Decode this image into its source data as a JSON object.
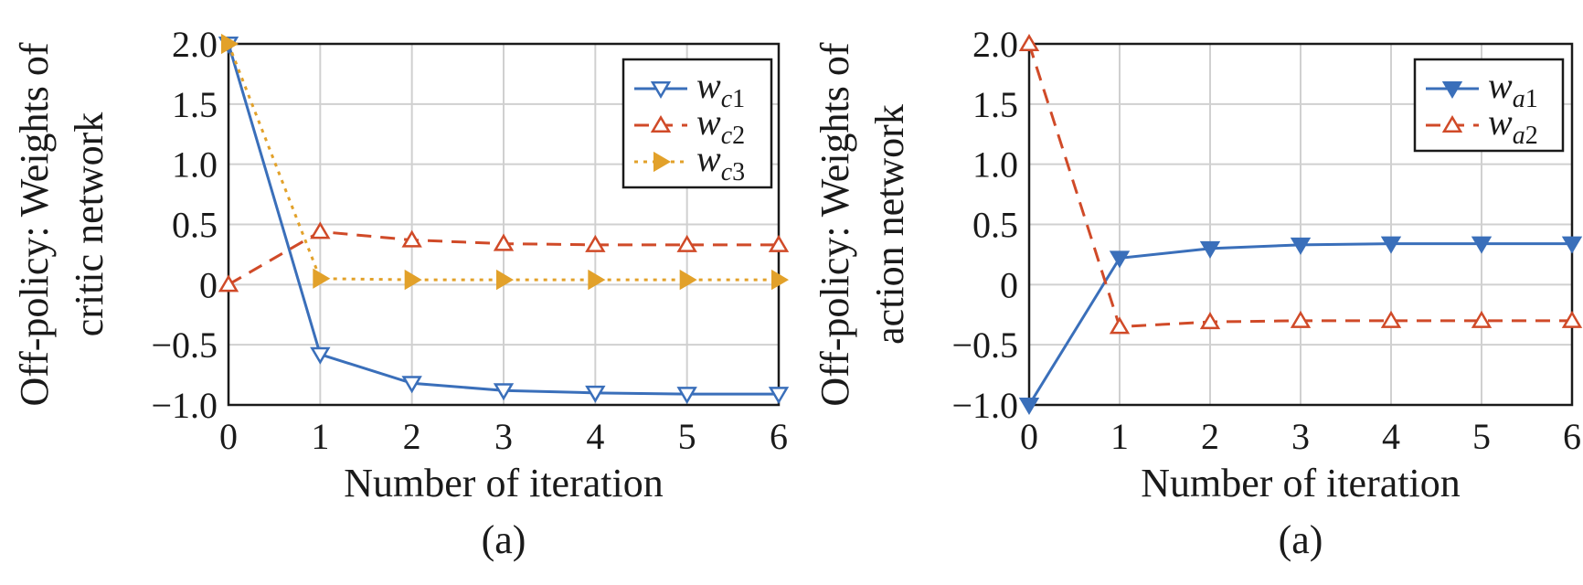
{
  "chart_data": [
    {
      "type": "line",
      "x": [
        0,
        1,
        2,
        3,
        4,
        5,
        6
      ],
      "xlabel": "Number of iteration",
      "ylabel_lines": [
        "Off-policy: Weights of",
        "critic network"
      ],
      "xlim": [
        0,
        6
      ],
      "ylim": [
        -1.0,
        2.0
      ],
      "xticks": [
        "0",
        "1",
        "2",
        "3",
        "4",
        "5",
        "6"
      ],
      "yticks": [
        "−1.0",
        "−0.5",
        "0",
        "0.5",
        "1.0",
        "1.5",
        "2.0"
      ],
      "yticks_values": [
        -1.0,
        -0.5,
        0,
        0.5,
        1.0,
        1.5,
        2.0
      ],
      "grid": true,
      "caption": "(a)",
      "legend_position": "top-right",
      "series": [
        {
          "name": "w",
          "sub_italic": "c",
          "sub_num": "1",
          "color": "#3a6fba",
          "dash": "solid",
          "marker": "triangle-down-open",
          "values": [
            2.0,
            -0.58,
            -0.82,
            -0.88,
            -0.9,
            -0.91,
            -0.91
          ]
        },
        {
          "name": "w",
          "sub_italic": "c",
          "sub_num": "2",
          "color": "#d04a28",
          "dash": "dashed",
          "marker": "triangle-up-open",
          "values": [
            0.0,
            0.44,
            0.37,
            0.34,
            0.33,
            0.33,
            0.33
          ]
        },
        {
          "name": "w",
          "sub_italic": "c",
          "sub_num": "3",
          "color": "#e2a12a",
          "dash": "dotted",
          "marker": "triangle-right-filled",
          "values": [
            2.0,
            0.05,
            0.04,
            0.04,
            0.04,
            0.04,
            0.04
          ]
        }
      ]
    },
    {
      "type": "line",
      "x": [
        0,
        1,
        2,
        3,
        4,
        5,
        6
      ],
      "xlabel": "Number of iteration",
      "ylabel_lines": [
        "Off-policy: Weights of",
        "action network"
      ],
      "xlim": [
        0,
        6
      ],
      "ylim": [
        -1.0,
        2.0
      ],
      "xticks": [
        "0",
        "1",
        "2",
        "3",
        "4",
        "5",
        "6"
      ],
      "yticks": [
        "−1.0",
        "−0.5",
        "0",
        "0.5",
        "1.0",
        "1.5",
        "2.0"
      ],
      "yticks_values": [
        -1.0,
        -0.5,
        0,
        0.5,
        1.0,
        1.5,
        2.0
      ],
      "grid": true,
      "caption": "(a)",
      "legend_position": "top-right",
      "series": [
        {
          "name": "w",
          "sub_italic": "a",
          "sub_num": "1",
          "color": "#3a6fba",
          "dash": "solid",
          "marker": "triangle-down-filled",
          "values": [
            -1.0,
            0.22,
            0.3,
            0.33,
            0.34,
            0.34,
            0.34
          ]
        },
        {
          "name": "w",
          "sub_italic": "a",
          "sub_num": "2",
          "color": "#d04a28",
          "dash": "dashed",
          "marker": "triangle-up-open",
          "values": [
            2.0,
            -0.35,
            -0.31,
            -0.3,
            -0.3,
            -0.3,
            -0.3
          ]
        }
      ]
    }
  ]
}
